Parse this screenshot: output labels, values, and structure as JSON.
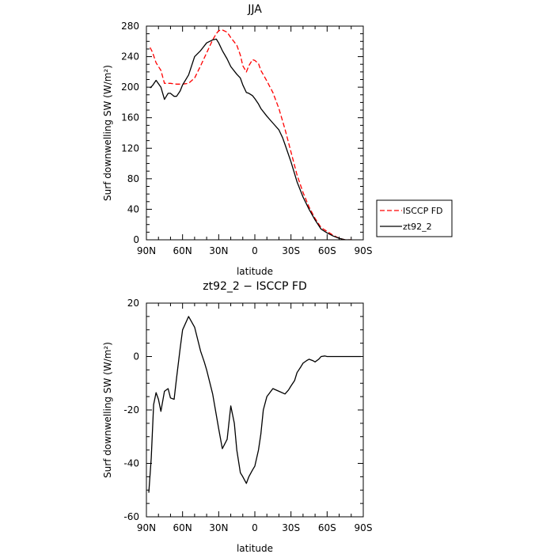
{
  "chart_data": [
    {
      "type": "line",
      "title": "JJA",
      "xlabel": "latitude",
      "ylabel": "Surf downwelling SW (W/m²)",
      "xlim": [
        90,
        -90
      ],
      "ylim": [
        0,
        280
      ],
      "x_tick_labels": [
        "90N",
        "60N",
        "30N",
        "0",
        "30S",
        "60S",
        "90S"
      ],
      "y_ticks": [
        0,
        40,
        80,
        120,
        160,
        200,
        240,
        280
      ],
      "legend_position": "right",
      "grid": false,
      "series": [
        {
          "name": "ISCCP FD",
          "color": "#ff0000",
          "dash": "dashed",
          "x": [
            87,
            85,
            82,
            78,
            75,
            70,
            65,
            60,
            55,
            50,
            45,
            40,
            35,
            32,
            30,
            27,
            23,
            20,
            15,
            12,
            10,
            7,
            5,
            2,
            0,
            -3,
            -5,
            -10,
            -15,
            -20,
            -25,
            -30,
            -35,
            -40,
            -45,
            -50,
            -55,
            -60,
            -65,
            -70,
            -75,
            -78,
            -80
          ],
          "y": [
            252,
            246,
            232,
            222,
            205,
            205,
            204,
            204,
            205,
            212,
            228,
            245,
            262,
            270,
            274,
            275,
            272,
            265,
            255,
            242,
            228,
            220,
            228,
            236,
            235,
            231,
            222,
            208,
            193,
            172,
            145,
            115,
            85,
            62,
            43,
            28,
            16,
            11,
            6,
            2,
            0,
            0,
            0
          ]
        },
        {
          "name": "zt92_2",
          "color": "#000000",
          "dash": "solid",
          "x": [
            87,
            85,
            82,
            78,
            75,
            72,
            70,
            67,
            65,
            62,
            60,
            55,
            50,
            45,
            40,
            35,
            32,
            30,
            27,
            23,
            20,
            15,
            12,
            10,
            7,
            5,
            2,
            0,
            -3,
            -5,
            -10,
            -15,
            -20,
            -23,
            -25,
            -30,
            -35,
            -40,
            -45,
            -50,
            -55,
            -60,
            -65,
            -70,
            -75,
            -78,
            -80
          ],
          "y": [
            199,
            202,
            209,
            200,
            184,
            192,
            192,
            188,
            188,
            195,
            203,
            216,
            240,
            248,
            258,
            262,
            263,
            258,
            248,
            237,
            227,
            217,
            212,
            203,
            193,
            192,
            189,
            185,
            178,
            172,
            162,
            153,
            144,
            134,
            125,
            102,
            76,
            56,
            40,
            26,
            14,
            9,
            5,
            2,
            0,
            0,
            0
          ]
        }
      ]
    },
    {
      "type": "line",
      "title": "zt92_2 − ISCCP FD",
      "xlabel": "latitude",
      "ylabel": "Surf downwelling SW (W/m²)",
      "xlim": [
        90,
        -90
      ],
      "ylim": [
        -60,
        20
      ],
      "x_tick_labels": [
        "90N",
        "60N",
        "30N",
        "0",
        "30S",
        "60S",
        "90S"
      ],
      "y_ticks": [
        -60,
        -40,
        -20,
        0,
        20
      ],
      "grid": false,
      "series": [
        {
          "color": "#000000",
          "dash": "solid",
          "x": [
            88,
            86,
            84,
            82,
            80,
            78,
            75,
            72,
            70,
            67,
            65,
            62,
            60,
            55,
            50,
            45,
            42,
            40,
            35,
            30,
            27,
            23,
            20,
            17,
            15,
            12,
            10,
            7,
            5,
            2,
            0,
            -3,
            -5,
            -7,
            -10,
            -15,
            -20,
            -25,
            -28,
            -30,
            -33,
            -35,
            -38,
            -40,
            -43,
            -45,
            -48,
            -50,
            -53,
            -55,
            -58,
            -60,
            -63,
            -65,
            -68,
            -70,
            -72,
            -75,
            -78,
            -80,
            -85,
            -88
          ],
          "y": [
            -51,
            -38,
            -18,
            -13.5,
            -16,
            -20.5,
            -13,
            -12,
            -15.5,
            -16,
            -8,
            3,
            10,
            15,
            11,
            2,
            -2,
            -5,
            -14,
            -27,
            -34.5,
            -31,
            -18.5,
            -25,
            -35,
            -43.5,
            -45,
            -47.5,
            -45,
            -42.5,
            -41,
            -35,
            -29,
            -20,
            -15,
            -12,
            -13,
            -14,
            -12.5,
            -11,
            -9,
            -6,
            -4,
            -2.5,
            -1.5,
            -1,
            -1.5,
            -2,
            -1,
            0,
            0.2,
            0,
            0,
            0,
            0,
            0,
            0,
            0,
            0,
            0,
            0,
            0
          ]
        }
      ]
    }
  ]
}
